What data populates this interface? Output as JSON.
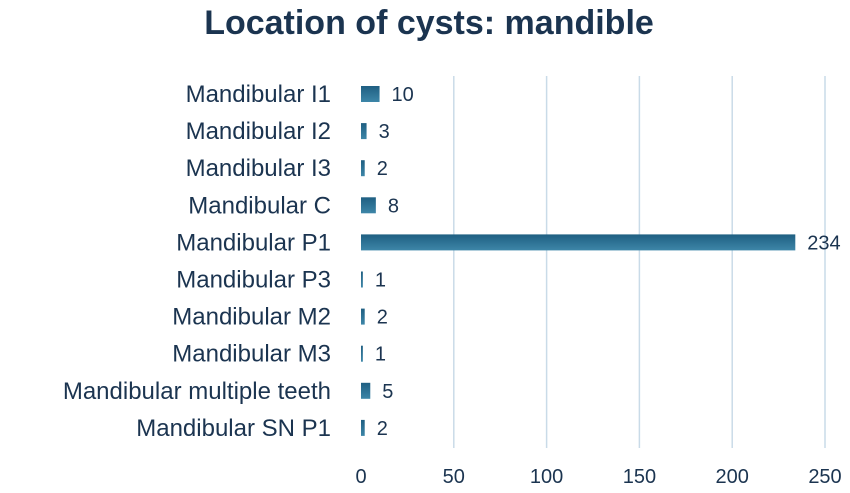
{
  "chart_data": {
    "type": "bar",
    "orientation": "horizontal",
    "title": "Location of cysts: mandible",
    "categories": [
      "Mandibular I1",
      "Mandibular I2",
      "Mandibular I3",
      "Mandibular C",
      "Mandibular P1",
      "Mandibular P3",
      "Mandibular M2",
      "Mandibular M3",
      "Mandibular multiple teeth",
      "Mandibular SN P1"
    ],
    "values": [
      10,
      3,
      2,
      8,
      234,
      1,
      2,
      1,
      5,
      2
    ],
    "xlim": [
      0,
      250
    ],
    "x_ticks": [
      0,
      50,
      100,
      150,
      200,
      250
    ],
    "xlabel": "",
    "ylabel": "",
    "grid": "vertical",
    "legend": "none",
    "bar_color": "#1f5f82",
    "bar_color_light": "#3d86a8",
    "text_color": "#1b3450",
    "grid_color": "#c9dbe8"
  }
}
